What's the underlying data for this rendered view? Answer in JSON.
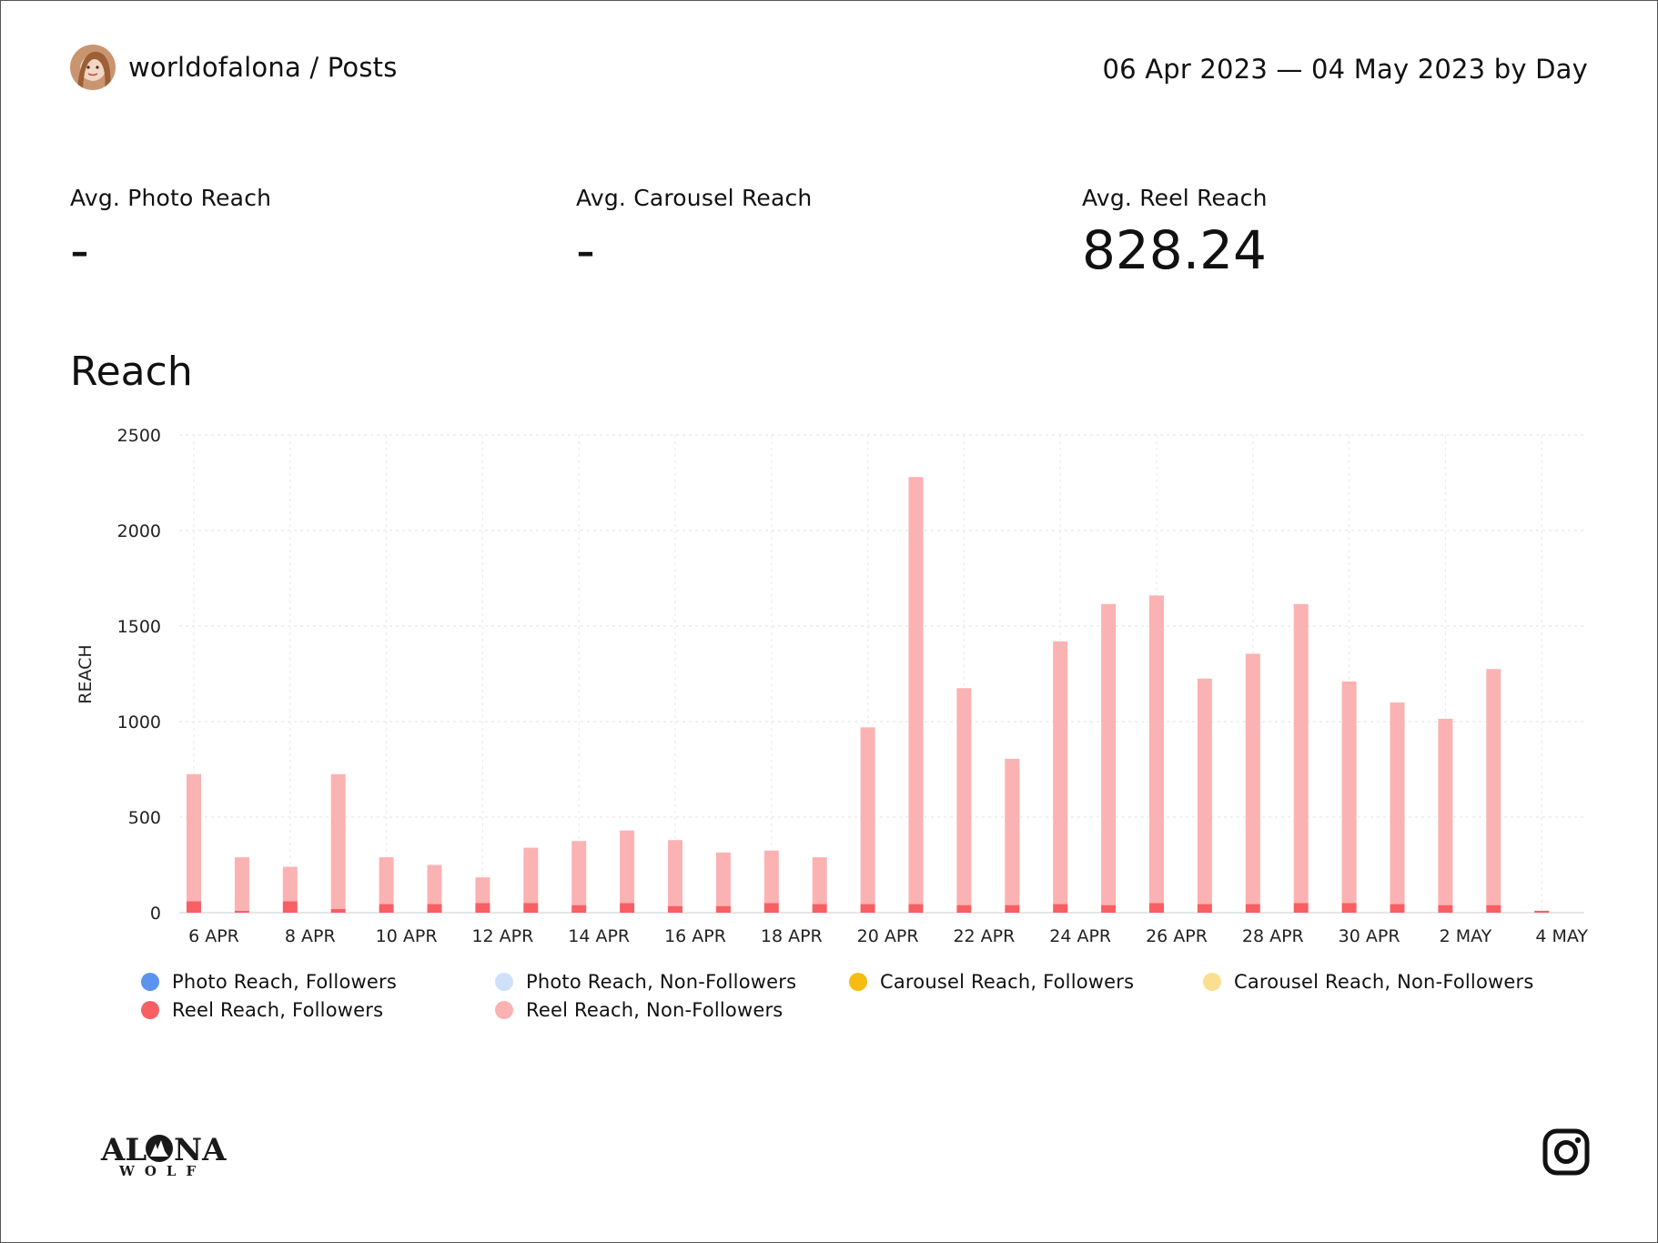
{
  "header": {
    "account": "worldofalona / Posts",
    "date_range": "06 Apr 2023 — 04 May 2023 by Day"
  },
  "metrics": [
    {
      "label": "Avg. Photo Reach",
      "value": "-"
    },
    {
      "label": "Avg. Carousel Reach",
      "value": "-"
    },
    {
      "label": "Avg. Reel Reach",
      "value": "828.24"
    }
  ],
  "section_title": "Reach",
  "colors": {
    "photo_followers": "#5b93ee",
    "photo_non_followers": "#cfe0f9",
    "carousel_followers": "#f6bc12",
    "carousel_non_followers": "#fbdf91",
    "reel_followers": "#f85f63",
    "reel_non_followers": "#fbb2b2"
  },
  "legend": [
    {
      "label": "Photo Reach, Followers",
      "color": "#5b93ee"
    },
    {
      "label": "Photo Reach, Non-Followers",
      "color": "#cfe0f9"
    },
    {
      "label": "Carousel Reach, Followers",
      "color": "#f6bc12"
    },
    {
      "label": "Carousel Reach, Non-Followers",
      "color": "#fbdf91"
    },
    {
      "label": "Reel Reach, Followers",
      "color": "#f85f63"
    },
    {
      "label": "Reel Reach, Non-Followers",
      "color": "#fbb2b2"
    }
  ],
  "chart_data": {
    "type": "bar",
    "stacked": true,
    "ylabel": "REACH",
    "ylim": [
      0,
      2500
    ],
    "yticks": [
      0,
      500,
      1000,
      1500,
      2000,
      2500
    ],
    "grid": true,
    "legend_position": "bottom",
    "x_tick_labels": [
      "6 APR",
      "8 APR",
      "10 APR",
      "12 APR",
      "14 APR",
      "16 APR",
      "18 APR",
      "20 APR",
      "22 APR",
      "24 APR",
      "26 APR",
      "28 APR",
      "30 APR",
      "2 MAY",
      "4 MAY"
    ],
    "categories": [
      "6 Apr",
      "7 Apr",
      "8 Apr",
      "9 Apr",
      "10 Apr",
      "11 Apr",
      "12 Apr",
      "13 Apr",
      "14 Apr",
      "15 Apr",
      "16 Apr",
      "17 Apr",
      "18 Apr",
      "19 Apr",
      "20 Apr",
      "21 Apr",
      "22 Apr",
      "23 Apr",
      "24 Apr",
      "25 Apr",
      "26 Apr",
      "27 Apr",
      "28 Apr",
      "29 Apr",
      "30 Apr",
      "1 May",
      "2 May",
      "3 May",
      "4 May"
    ],
    "series": [
      {
        "name": "Photo Reach, Followers",
        "values": [
          0,
          0,
          0,
          0,
          0,
          0,
          0,
          0,
          0,
          0,
          0,
          0,
          0,
          0,
          0,
          0,
          0,
          0,
          0,
          0,
          0,
          0,
          0,
          0,
          0,
          0,
          0,
          0,
          0
        ]
      },
      {
        "name": "Photo Reach, Non-Followers",
        "values": [
          0,
          0,
          0,
          0,
          0,
          0,
          0,
          0,
          0,
          0,
          0,
          0,
          0,
          0,
          0,
          0,
          0,
          0,
          0,
          0,
          0,
          0,
          0,
          0,
          0,
          0,
          0,
          0,
          0
        ]
      },
      {
        "name": "Carousel Reach, Followers",
        "values": [
          0,
          0,
          0,
          0,
          0,
          0,
          0,
          0,
          0,
          0,
          0,
          0,
          0,
          0,
          0,
          0,
          0,
          0,
          0,
          0,
          0,
          0,
          0,
          0,
          0,
          0,
          0,
          0,
          0
        ]
      },
      {
        "name": "Carousel Reach, Non-Followers",
        "values": [
          0,
          0,
          0,
          0,
          0,
          0,
          0,
          0,
          0,
          0,
          0,
          0,
          0,
          0,
          0,
          0,
          0,
          0,
          0,
          0,
          0,
          0,
          0,
          0,
          0,
          0,
          0,
          0,
          0
        ]
      },
      {
        "name": "Reel Reach, Followers",
        "values": [
          60,
          10,
          60,
          20,
          45,
          45,
          50,
          50,
          40,
          50,
          35,
          35,
          50,
          45,
          45,
          45,
          40,
          40,
          45,
          40,
          50,
          45,
          45,
          50,
          50,
          45,
          40,
          40,
          10
        ]
      },
      {
        "name": "Reel Reach, Non-Followers",
        "values": [
          665,
          280,
          180,
          705,
          245,
          205,
          135,
          290,
          335,
          380,
          345,
          280,
          275,
          245,
          925,
          2235,
          1135,
          765,
          1375,
          1575,
          1610,
          1180,
          1310,
          1565,
          1160,
          1055,
          975,
          1235,
          0
        ]
      }
    ]
  }
}
